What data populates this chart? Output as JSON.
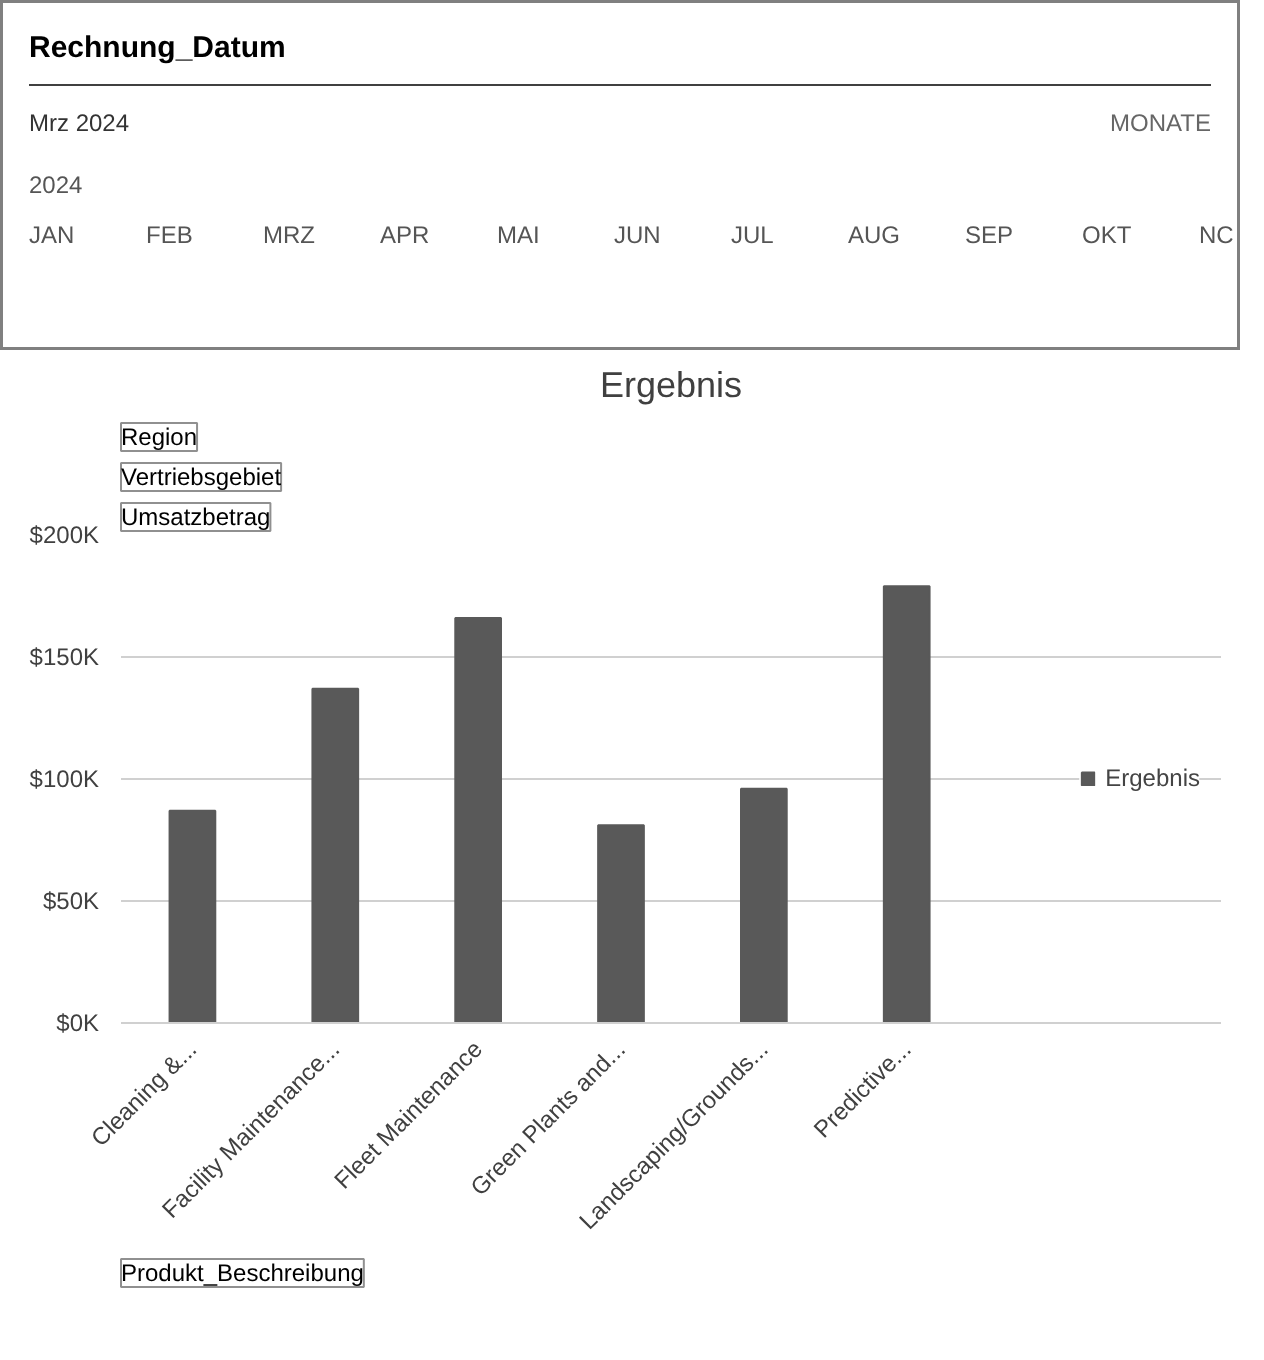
{
  "chart_data": [
    {
      "type": "other",
      "title": "Rechnung_Datum",
      "annotations": [
        "Mrz 2024",
        "MONATE",
        "2024"
      ],
      "categories": [
        "JAN",
        "FEB",
        "MRZ",
        "APR",
        "MAI",
        "JUN",
        "JUL",
        "AUG",
        "SEP",
        "OKT",
        "NC"
      ]
    },
    {
      "type": "bar",
      "title": "Ergebnis",
      "categories": [
        "Cleaning &...",
        "Facility Maintenance...",
        "Fleet Maintenance",
        "Green Plants and...",
        "Landscaping/Grounds...",
        "Predictive..."
      ],
      "series": [
        {
          "name": "Ergebnis",
          "color": "#595959",
          "values": [
            87000,
            137000,
            166000,
            81000,
            96000,
            179000
          ]
        }
      ],
      "ylim": [
        0,
        200000
      ],
      "yticks": [
        {
          "value": 0,
          "label": "$0K"
        },
        {
          "value": 50000,
          "label": "$50K"
        },
        {
          "value": 100000,
          "label": "$100K"
        },
        {
          "value": 150000,
          "label": "$150K"
        },
        {
          "value": 200000,
          "label": "$200K"
        }
      ],
      "grid": "y",
      "legend": "right",
      "annotations": [
        "Region",
        "Vertriebsgebiet",
        "Umsatzbetrag",
        "Produkt_Beschreibung"
      ]
    }
  ]
}
